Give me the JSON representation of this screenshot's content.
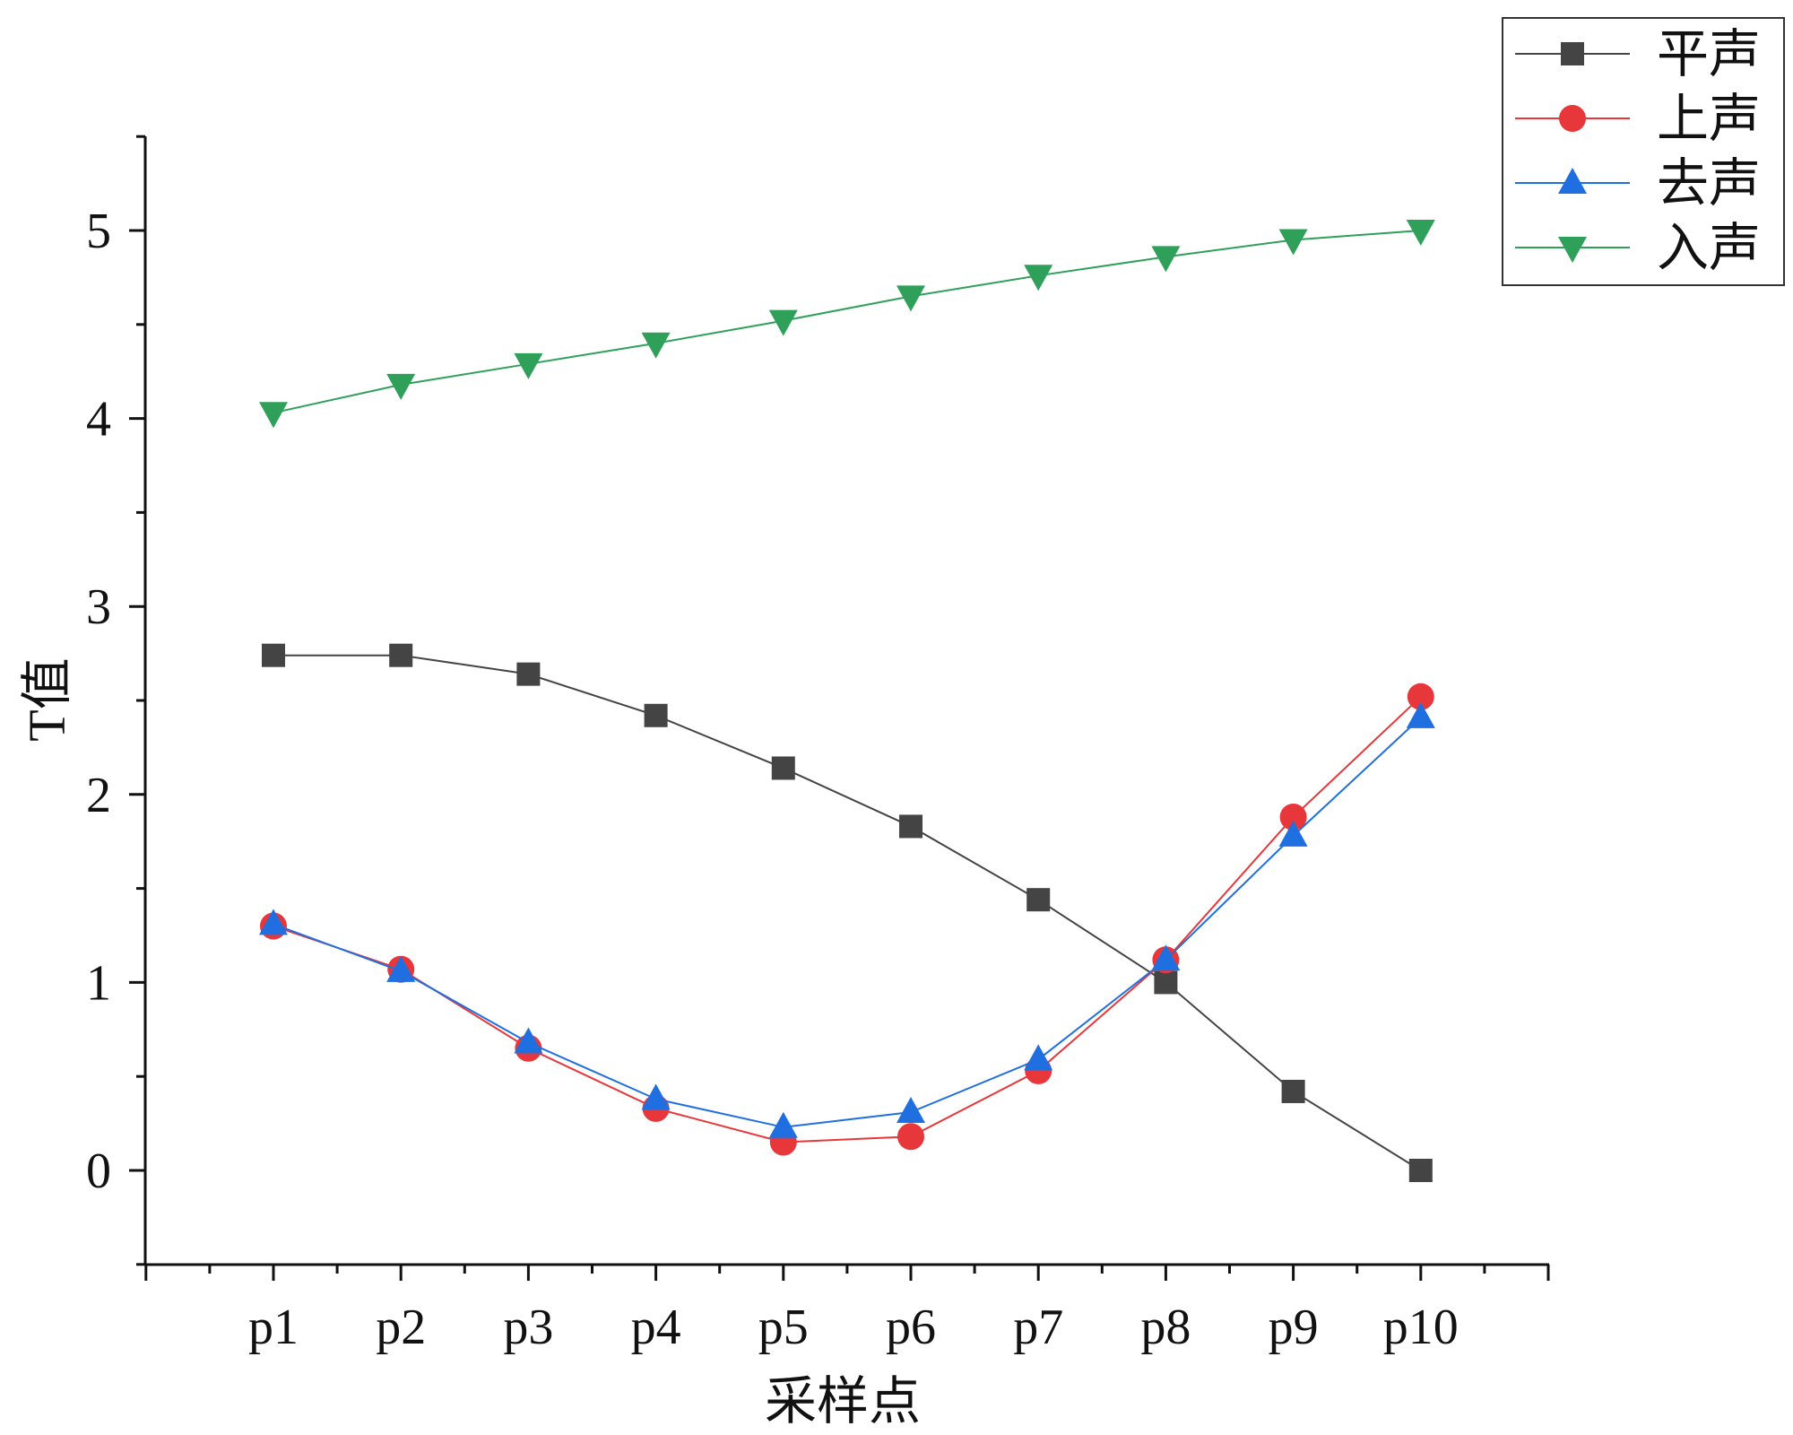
{
  "chart_data": {
    "type": "line",
    "title": "",
    "xlabel": "采样点",
    "ylabel": "T值",
    "categories": [
      "p1",
      "p2",
      "p3",
      "p4",
      "p5",
      "p6",
      "p7",
      "p8",
      "p9",
      "p10"
    ],
    "y_ticks": [
      "0",
      "1",
      "2",
      "3",
      "4",
      "5"
    ],
    "ylim": [
      -0.5,
      5.5
    ],
    "grid": false,
    "legend_position": "top-right",
    "series": [
      {
        "name": "平声",
        "color": "#444444",
        "marker": "square",
        "values": [
          2.74,
          2.74,
          2.64,
          2.42,
          2.14,
          1.83,
          1.44,
          1.0,
          0.42,
          0.0
        ]
      },
      {
        "name": "上声",
        "color": "#e8373a",
        "marker": "circle",
        "values": [
          1.3,
          1.07,
          0.65,
          0.33,
          0.15,
          0.18,
          0.53,
          1.12,
          1.88,
          2.52
        ]
      },
      {
        "name": "去声",
        "color": "#1f6fe0",
        "marker": "triangle-up",
        "values": [
          1.31,
          1.06,
          0.68,
          0.38,
          0.23,
          0.31,
          0.59,
          1.12,
          1.78,
          2.41
        ]
      },
      {
        "name": "入声",
        "color": "#2ea05a",
        "marker": "triangle-down",
        "values": [
          4.03,
          4.18,
          4.29,
          4.4,
          4.52,
          4.65,
          4.76,
          4.86,
          4.95,
          5.0
        ]
      }
    ]
  }
}
